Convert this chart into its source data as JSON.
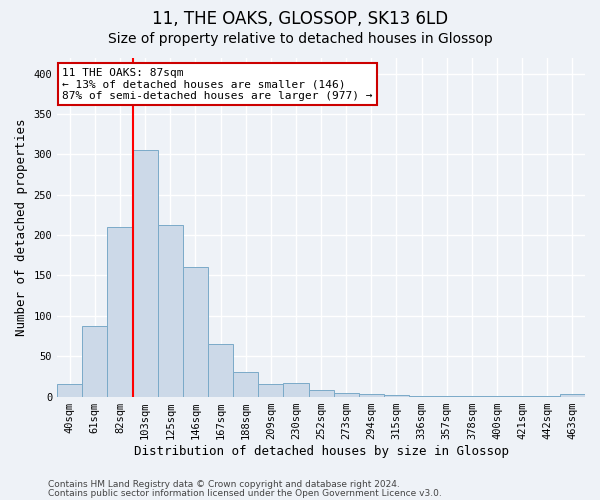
{
  "title1": "11, THE OAKS, GLOSSOP, SK13 6LD",
  "title2": "Size of property relative to detached houses in Glossop",
  "xlabel": "Distribution of detached houses by size in Glossop",
  "ylabel": "Number of detached properties",
  "categories": [
    "40sqm",
    "61sqm",
    "82sqm",
    "103sqm",
    "125sqm",
    "146sqm",
    "167sqm",
    "188sqm",
    "209sqm",
    "230sqm",
    "252sqm",
    "273sqm",
    "294sqm",
    "315sqm",
    "336sqm",
    "357sqm",
    "378sqm",
    "400sqm",
    "421sqm",
    "442sqm",
    "463sqm"
  ],
  "values": [
    15,
    88,
    210,
    305,
    212,
    160,
    65,
    30,
    15,
    17,
    8,
    5,
    3,
    2,
    1,
    1,
    1,
    1,
    1,
    1,
    3
  ],
  "bar_color": "#ccd9e8",
  "bar_edge_color": "#7aaac8",
  "red_line_x": 2.5,
  "annotation_line1": "11 THE OAKS: 87sqm",
  "annotation_line2": "← 13% of detached houses are smaller (146)",
  "annotation_line3": "87% of semi-detached houses are larger (977) →",
  "annotation_box_color": "#ffffff",
  "annotation_box_edge": "#cc0000",
  "ylim": [
    0,
    420
  ],
  "yticks": [
    0,
    50,
    100,
    150,
    200,
    250,
    300,
    350,
    400
  ],
  "footer1": "Contains HM Land Registry data © Crown copyright and database right 2024.",
  "footer2": "Contains public sector information licensed under the Open Government Licence v3.0.",
  "background_color": "#eef2f7",
  "grid_color": "#ffffff",
  "title1_fontsize": 12,
  "title2_fontsize": 10,
  "tick_fontsize": 7.5,
  "ylabel_fontsize": 9,
  "xlabel_fontsize": 9,
  "footer_fontsize": 6.5
}
